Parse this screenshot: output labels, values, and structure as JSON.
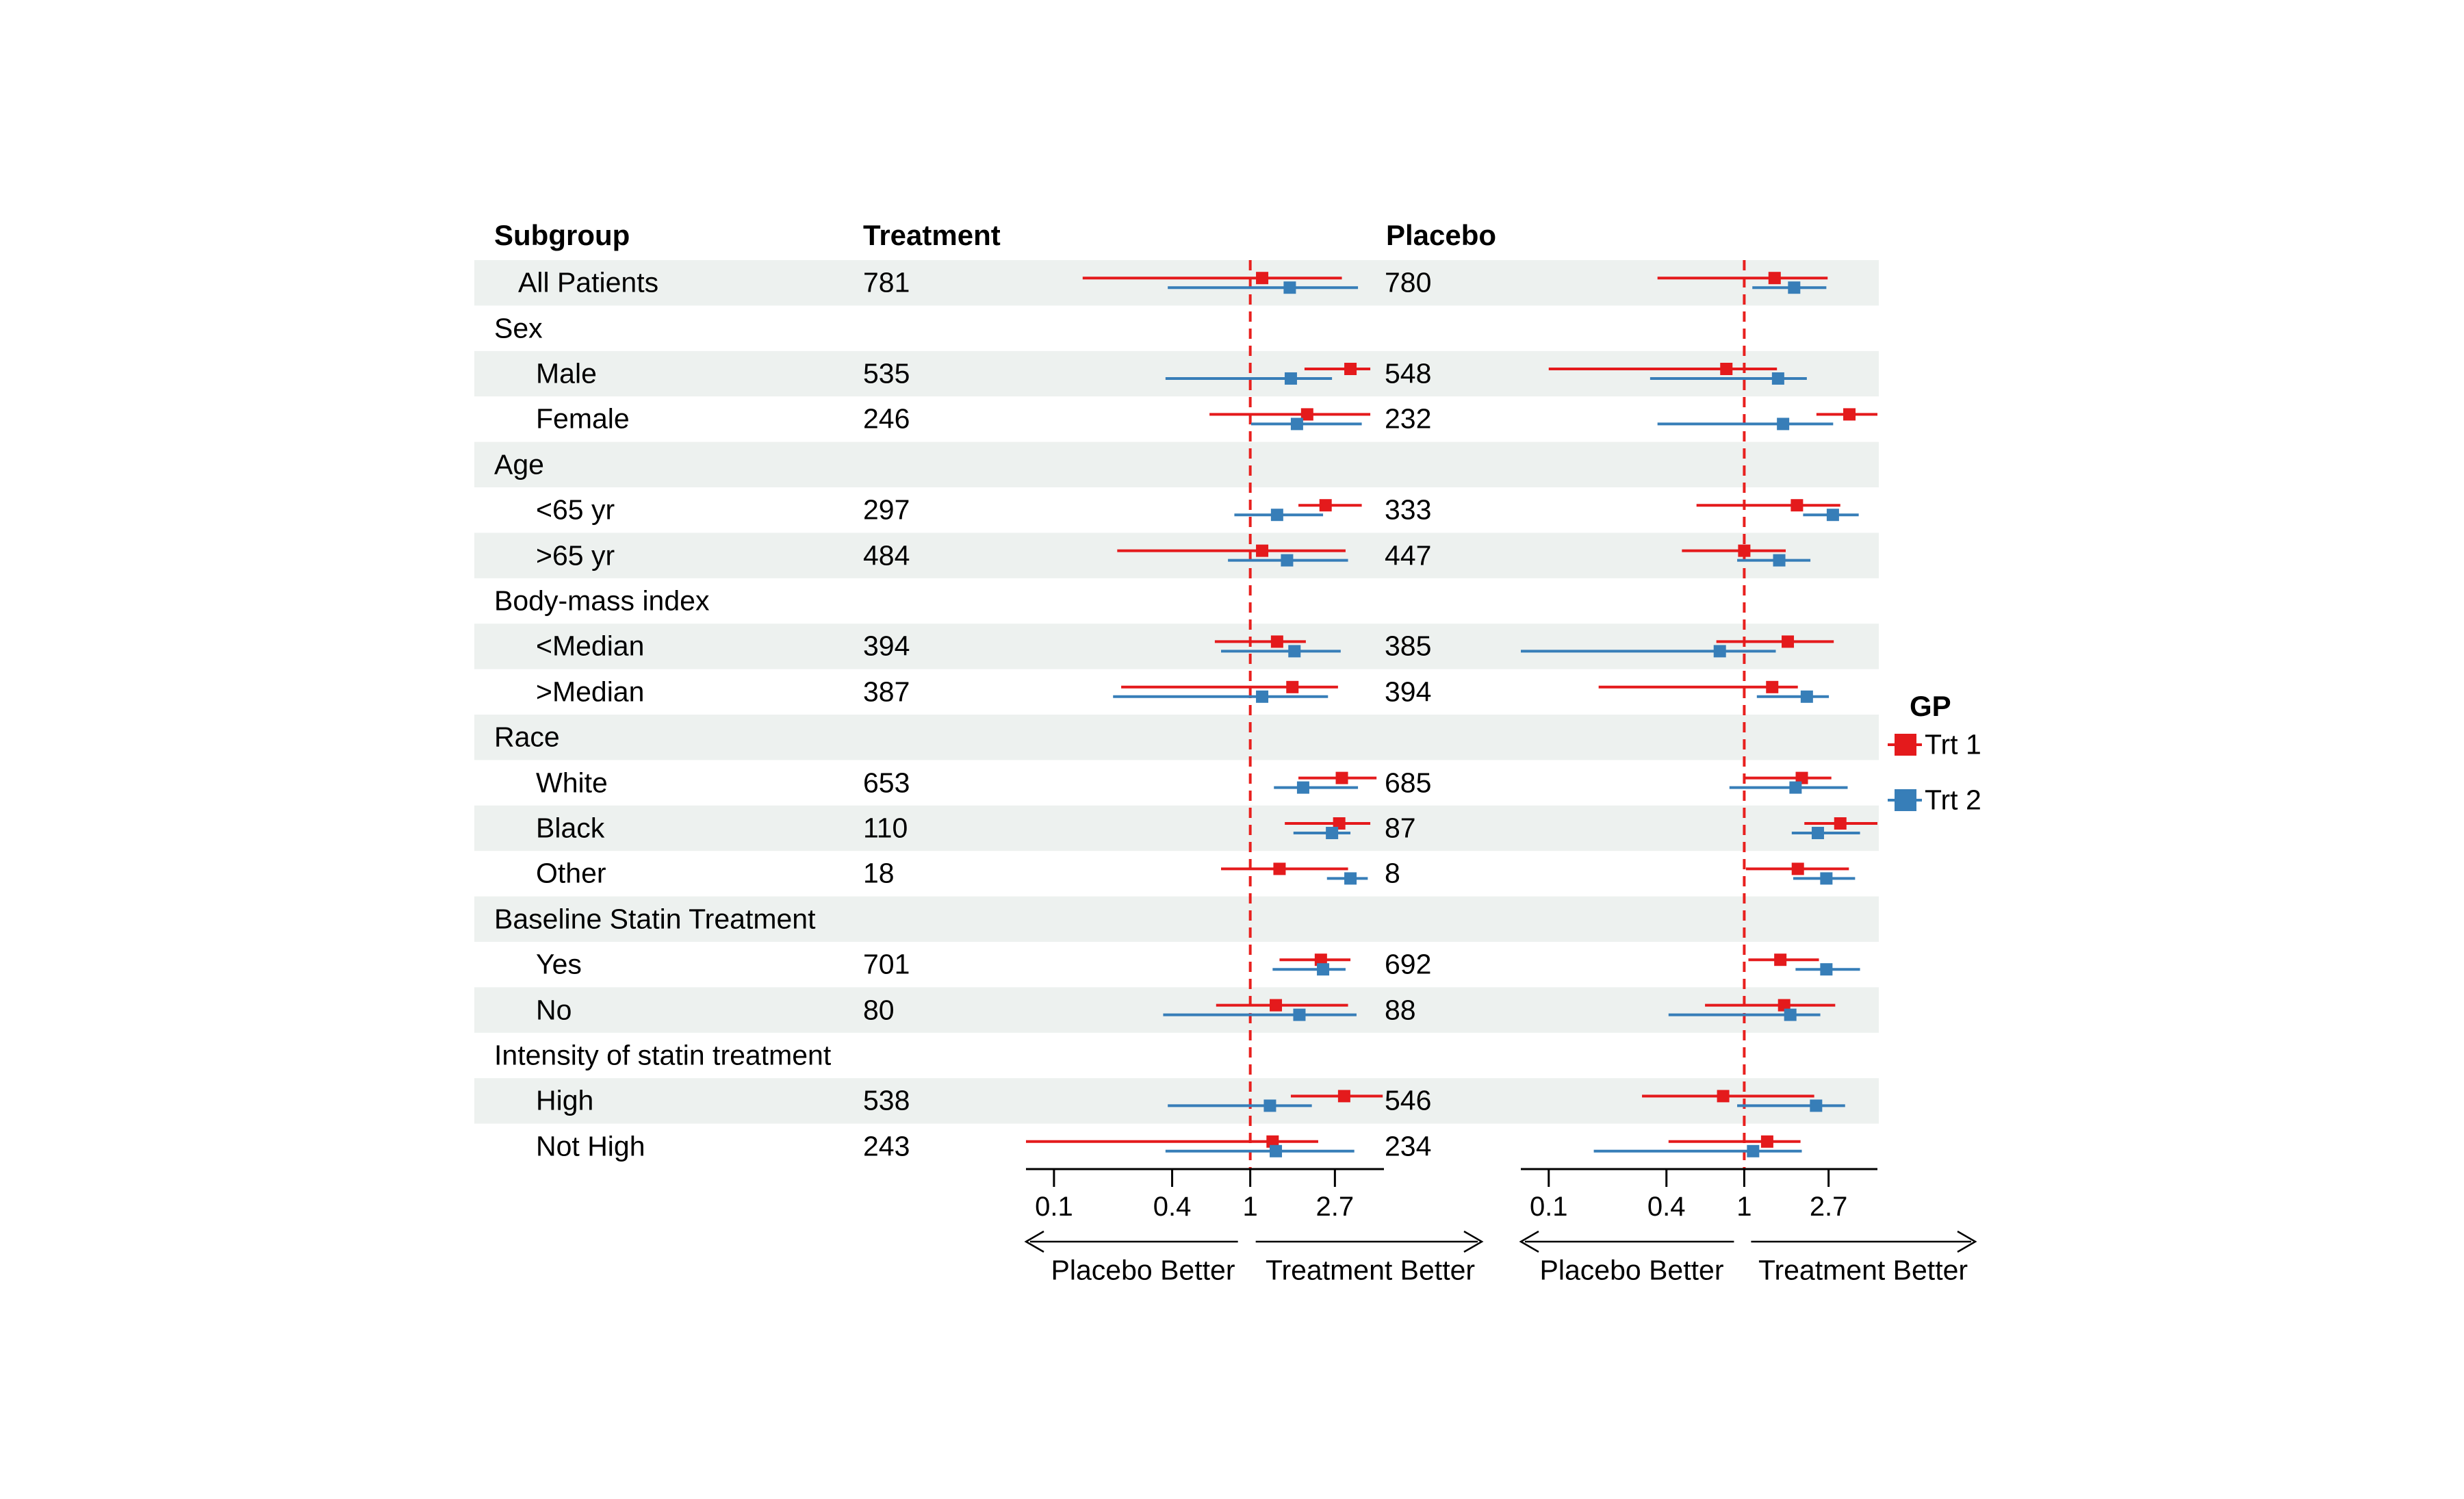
{
  "headers": {
    "subgroup": "Subgroup",
    "treatment": "Treatment",
    "placebo": "Placebo"
  },
  "legend": {
    "title": "GP",
    "items": [
      {
        "label": "Trt 1",
        "color": "#e41a1c"
      },
      {
        "label": "Trt 2",
        "color": "#377eb8"
      }
    ]
  },
  "colors": {
    "trt1": "#e41a1c",
    "trt2": "#377eb8",
    "reference_line": "#e8201e",
    "row_band": "#edf1ef",
    "axis": "#000000"
  },
  "chart_data": {
    "type": "forest",
    "x_scale": "log",
    "x_domain": [
      0.072,
      4.8
    ],
    "x_ticks": [
      0.1,
      0.4,
      1,
      2.7
    ],
    "x_tick_labels": [
      "0.1",
      "0.4",
      "1",
      "2.7"
    ],
    "reference_value": 1,
    "series": [
      {
        "name": "Trt 1",
        "color": "#e41a1c"
      },
      {
        "name": "Trt 2",
        "color": "#377eb8"
      }
    ],
    "panels": [
      {
        "name": "treatment-panel",
        "better_left": "Placebo Better",
        "better_right": "Treatment Better"
      },
      {
        "name": "placebo-panel",
        "better_left": "Placebo Better",
        "better_right": "Treatment Better"
      }
    ],
    "rows": [
      {
        "label": "All Patients",
        "indent": 1,
        "shaded": true,
        "treatment_n": "781",
        "placebo_n": "780",
        "treatment_panel": {
          "trt1": [
            1.15,
            0.14,
            2.93
          ],
          "trt2": [
            1.59,
            0.38,
            3.54
          ]
        },
        "placebo_panel": {
          "trt1": [
            1.43,
            0.36,
            2.67
          ],
          "trt2": [
            1.8,
            1.1,
            2.63
          ]
        }
      },
      {
        "label": "Sex",
        "indent": 0,
        "shaded": false
      },
      {
        "label": "Male",
        "indent": 2,
        "shaded": true,
        "treatment_n": "535",
        "placebo_n": "548",
        "treatment_panel": {
          "trt1": [
            3.24,
            1.89,
            4.09
          ],
          "trt2": [
            1.61,
            0.37,
            2.61
          ]
        },
        "placebo_panel": {
          "trt1": [
            0.81,
            0.1,
            1.47
          ],
          "trt2": [
            1.49,
            0.33,
            2.09
          ]
        }
      },
      {
        "label": "Female",
        "indent": 2,
        "shaded": false,
        "treatment_n": "246",
        "placebo_n": "232",
        "treatment_panel": {
          "trt1": [
            1.95,
            0.62,
            4.09
          ],
          "trt2": [
            1.73,
            1.01,
            3.7
          ]
        },
        "placebo_panel": {
          "trt1": [
            3.45,
            2.34,
            4.8
          ],
          "trt2": [
            1.58,
            0.36,
            2.85
          ]
        }
      },
      {
        "label": "Age",
        "indent": 0,
        "shaded": true
      },
      {
        "label": "<65 yr",
        "indent": 2,
        "shaded": false,
        "treatment_n": "297",
        "placebo_n": "333",
        "treatment_panel": {
          "trt1": [
            2.42,
            1.76,
            3.7
          ],
          "trt2": [
            1.37,
            0.83,
            2.35
          ]
        },
        "placebo_panel": {
          "trt1": [
            1.86,
            0.57,
            3.1
          ],
          "trt2": [
            2.84,
            2.0,
            3.85
          ]
        }
      },
      {
        "label": ">65 yr",
        "indent": 2,
        "shaded": true,
        "treatment_n": "484",
        "placebo_n": "447",
        "treatment_panel": {
          "trt1": [
            1.15,
            0.21,
            3.06
          ],
          "trt2": [
            1.54,
            0.77,
            3.15
          ]
        },
        "placebo_panel": {
          "trt1": [
            1.0,
            0.48,
            1.63
          ],
          "trt2": [
            1.51,
            0.92,
            2.18
          ]
        }
      },
      {
        "label": "Body-mass index",
        "indent": 0,
        "shaded": false
      },
      {
        "label": "<Median",
        "indent": 2,
        "shaded": true,
        "treatment_n": "394",
        "placebo_n": "385",
        "treatment_panel": {
          "trt1": [
            1.37,
            0.66,
            1.92
          ],
          "trt2": [
            1.68,
            0.71,
            2.89
          ]
        },
        "placebo_panel": {
          "trt1": [
            1.67,
            0.72,
            2.87
          ],
          "trt2": [
            0.75,
            0.07,
            1.45
          ]
        }
      },
      {
        "label": ">Median",
        "indent": 2,
        "shaded": false,
        "treatment_n": "387",
        "placebo_n": "394",
        "treatment_panel": {
          "trt1": [
            1.64,
            0.22,
            2.8
          ],
          "trt2": [
            1.15,
            0.2,
            2.49
          ]
        },
        "placebo_panel": {
          "trt1": [
            1.39,
            0.18,
            1.88
          ],
          "trt2": [
            2.09,
            1.16,
            2.71
          ]
        }
      },
      {
        "label": "Race",
        "indent": 0,
        "shaded": true
      },
      {
        "label": "White",
        "indent": 2,
        "shaded": false,
        "treatment_n": "653",
        "placebo_n": "685",
        "treatment_panel": {
          "trt1": [
            2.93,
            1.76,
            4.4
          ],
          "trt2": [
            1.86,
            1.32,
            3.54
          ]
        },
        "placebo_panel": {
          "trt1": [
            1.97,
            1.0,
            2.79
          ],
          "trt2": [
            1.83,
            0.84,
            3.38
          ]
        }
      },
      {
        "label": "Black",
        "indent": 2,
        "shaded": true,
        "treatment_n": "110",
        "placebo_n": "87",
        "treatment_panel": {
          "trt1": [
            2.84,
            1.5,
            4.09
          ],
          "trt2": [
            2.61,
            1.66,
            3.24
          ]
        },
        "placebo_panel": {
          "trt1": [
            3.1,
            2.03,
            4.8
          ],
          "trt2": [
            2.38,
            1.75,
            3.91
          ]
        }
      },
      {
        "label": "Other",
        "indent": 2,
        "shaded": false,
        "treatment_n": "18",
        "placebo_n": "8",
        "treatment_panel": {
          "trt1": [
            1.41,
            0.71,
            3.15
          ],
          "trt2": [
            3.24,
            2.46,
            3.97
          ]
        },
        "placebo_panel": {
          "trt1": [
            1.88,
            1.02,
            3.43
          ],
          "trt2": [
            2.63,
            1.78,
            3.69
          ]
        }
      },
      {
        "label": "Baseline Statin Treatment",
        "indent": 0,
        "shaded": true
      },
      {
        "label": "Yes",
        "indent": 2,
        "shaded": false,
        "treatment_n": "701",
        "placebo_n": "692",
        "treatment_panel": {
          "trt1": [
            2.29,
            1.41,
            3.24
          ],
          "trt2": [
            2.35,
            1.3,
            3.06
          ]
        },
        "placebo_panel": {
          "trt1": [
            1.53,
            1.05,
            2.41
          ],
          "trt2": [
            2.63,
            1.83,
            3.91
          ]
        }
      },
      {
        "label": "No",
        "indent": 2,
        "shaded": true,
        "treatment_n": "80",
        "placebo_n": "88",
        "treatment_panel": {
          "trt1": [
            1.35,
            0.67,
            3.15
          ],
          "trt2": [
            1.78,
            0.36,
            3.48
          ]
        },
        "placebo_panel": {
          "trt1": [
            1.6,
            0.63,
            2.92
          ],
          "trt2": [
            1.72,
            0.41,
            2.45
          ]
        }
      },
      {
        "label": "Intensity of statin treatment",
        "indent": 0,
        "shaded": false
      },
      {
        "label": "High",
        "indent": 2,
        "shaded": true,
        "treatment_n": "538",
        "placebo_n": "546",
        "treatment_panel": {
          "trt1": [
            3.01,
            1.61,
            4.73
          ],
          "trt2": [
            1.26,
            0.38,
            2.06
          ]
        },
        "placebo_panel": {
          "trt1": [
            0.78,
            0.3,
            2.28
          ],
          "trt2": [
            2.33,
            0.92,
            3.28
          ]
        }
      },
      {
        "label": "Not High",
        "indent": 2,
        "shaded": false,
        "treatment_n": "243",
        "placebo_n": "234",
        "treatment_panel": {
          "trt1": [
            1.3,
            0.07,
            2.22
          ],
          "trt2": [
            1.35,
            0.37,
            3.39
          ]
        },
        "placebo_panel": {
          "trt1": [
            1.31,
            0.41,
            1.94
          ],
          "trt2": [
            1.11,
            0.17,
            1.97
          ]
        }
      }
    ]
  }
}
